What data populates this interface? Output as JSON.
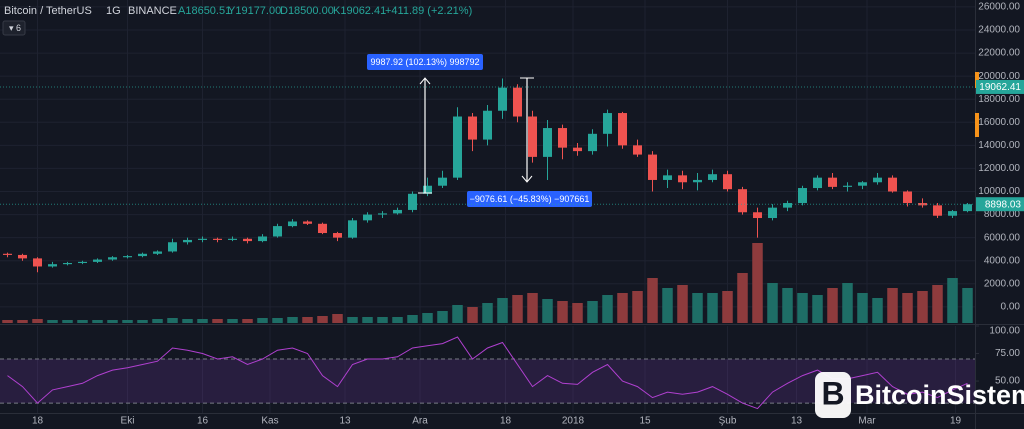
{
  "header": {
    "symbol": "Bitcoin / TetherUS",
    "interval": "1G",
    "exchange": "BINANCE",
    "ohlc": [
      "A18650.51",
      "Y19177.00",
      "D18500.00",
      "K19062.41"
    ],
    "change": "+411.89 (+2.21%)",
    "indicator_count": "6"
  },
  "annotations": [
    "9987.92 (102.13%) 998792",
    "−9076.61 (−45.83%) −907661"
  ],
  "watermark": "BitcoinSistemi",
  "chart_data": [
    {
      "type": "candlestick",
      "up_color": "#26a69a",
      "down_color": "#ef5350",
      "xlim": [
        -0.5,
        64.5
      ],
      "xticks": [
        {
          "value": 2,
          "label": "18"
        },
        {
          "value": 8,
          "label": "Eki"
        },
        {
          "value": 13,
          "label": "16"
        },
        {
          "value": 17.5,
          "label": "Kas"
        },
        {
          "value": 22.5,
          "label": "13"
        },
        {
          "value": 27.5,
          "label": "Ara"
        },
        {
          "value": 33.2,
          "label": "18"
        },
        {
          "value": 37.7,
          "label": "2018"
        },
        {
          "value": 42.5,
          "label": "15"
        },
        {
          "value": 48,
          "label": "Şub"
        },
        {
          "value": 52.6,
          "label": "13"
        },
        {
          "value": 57.3,
          "label": "Mar"
        },
        {
          "value": 63.2,
          "label": "19"
        }
      ],
      "ylim": [
        -1400,
        26600
      ],
      "yticks": [
        {
          "value": 0,
          "label": "0.00"
        },
        {
          "value": 2000,
          "label": "2000.00"
        },
        {
          "value": 4000,
          "label": "4000.00"
        },
        {
          "value": 6000,
          "label": "6000.00"
        },
        {
          "value": 8000,
          "label": "8000.00"
        },
        {
          "value": 10000,
          "label": "10000.00"
        },
        {
          "value": 12000,
          "label": "12000.00"
        },
        {
          "value": 14000,
          "label": "14000.00"
        },
        {
          "value": 16000,
          "label": "16000.00"
        },
        {
          "value": 18000,
          "label": "18000.00"
        },
        {
          "value": 20000,
          "label": "20000.00"
        },
        {
          "value": 22000,
          "label": "22000.00"
        },
        {
          "value": 24000,
          "label": "24000.00"
        },
        {
          "value": 26000,
          "label": "26000.00"
        }
      ],
      "grid": true,
      "price_lines": [
        {
          "value": 19062.41,
          "color": "#26a69a"
        },
        {
          "value": 8898.03,
          "color": "#26a69a"
        }
      ],
      "open": [
        4600,
        4500,
        4200,
        3500,
        3700,
        3800,
        3900,
        4100,
        4300,
        4400,
        4600,
        4800,
        5600,
        5800,
        5900,
        5800,
        5900,
        5700,
        6100,
        7000,
        7400,
        7200,
        6400,
        6000,
        7500,
        8000,
        8100,
        8400,
        9800,
        10500,
        11200,
        16500,
        14500,
        17000,
        19000,
        16500,
        13000,
        15500,
        13800,
        13500,
        15000,
        16800,
        14000,
        13200,
        11000,
        11400,
        10800,
        11000,
        11500,
        10200,
        8200,
        7700,
        8600,
        9000,
        10300,
        11200,
        10400,
        10500,
        10800,
        11200,
        10000,
        9000,
        8800,
        7900,
        8300
      ],
      "high": [
        4700,
        4600,
        4300,
        3900,
        3900,
        4000,
        4200,
        4400,
        4500,
        4700,
        4900,
        5900,
        6000,
        6100,
        6000,
        6100,
        6000,
        6300,
        7200,
        7600,
        7500,
        7300,
        6500,
        7700,
        8200,
        8300,
        8600,
        10000,
        11200,
        11800,
        17300,
        16800,
        17500,
        19800,
        19300,
        17000,
        16200,
        15800,
        14200,
        15400,
        17100,
        16900,
        14500,
        13500,
        11900,
        11800,
        11600,
        11900,
        11800,
        10400,
        8600,
        8900,
        9200,
        10500,
        11400,
        11600,
        10800,
        10900,
        11600,
        11400,
        10100,
        9400,
        9000,
        8400,
        9000
      ],
      "low": [
        4300,
        4000,
        3000,
        3400,
        3600,
        3700,
        3800,
        4000,
        4200,
        4300,
        4500,
        4700,
        5400,
        5600,
        5600,
        5700,
        5500,
        5600,
        6000,
        6900,
        7100,
        6300,
        5700,
        5900,
        7300,
        7700,
        8000,
        8200,
        9600,
        10300,
        11000,
        13500,
        14000,
        16300,
        16000,
        12500,
        11000,
        12800,
        13100,
        13200,
        13900,
        13700,
        13000,
        10000,
        10300,
        10200,
        10100,
        10800,
        10000,
        8000,
        6000,
        7500,
        8300,
        8800,
        10100,
        10200,
        10000,
        10200,
        10600,
        9900,
        8700,
        8600,
        7700,
        7700,
        8200
      ],
      "close": [
        4500,
        4200,
        3500,
        3700,
        3800,
        3900,
        4100,
        4300,
        4400,
        4600,
        4800,
        5600,
        5800,
        5900,
        5800,
        5900,
        5700,
        6100,
        7000,
        7400,
        7200,
        6400,
        6000,
        7500,
        8000,
        8100,
        8400,
        9800,
        10500,
        11200,
        16500,
        14500,
        17000,
        19000,
        16500,
        13000,
        15500,
        13800,
        13500,
        15000,
        16800,
        14000,
        13200,
        11000,
        11400,
        10800,
        11000,
        11500,
        10200,
        8200,
        7700,
        8600,
        9000,
        10300,
        11200,
        10400,
        10500,
        10800,
        11200,
        10000,
        9000,
        8800,
        7900,
        8300,
        8898.03
      ]
    },
    {
      "type": "bar",
      "up_color": "#1e6e66",
      "down_color": "#8e3b3d",
      "values": [
        3,
        3,
        4,
        3,
        3,
        3,
        3,
        3,
        3,
        3,
        4,
        5,
        4,
        4,
        4,
        4,
        4,
        5,
        5,
        6,
        6,
        7,
        9,
        6,
        6,
        6,
        6,
        8,
        10,
        12,
        18,
        16,
        20,
        25,
        28,
        30,
        24,
        22,
        20,
        22,
        28,
        30,
        32,
        45,
        35,
        38,
        30,
        30,
        32,
        50,
        80,
        40,
        35,
        30,
        28,
        35,
        40,
        30,
        25,
        35,
        30,
        32,
        38,
        45,
        35
      ]
    },
    {
      "type": "line",
      "color": "#b040d0",
      "band_color": "rgba(120,60,170,0.22)",
      "bands": [
        30,
        70
      ],
      "ylim": [
        21,
        100
      ],
      "yticks": [
        {
          "value": 100,
          "label": "100.00"
        },
        {
          "value": 75,
          "label": "75.00"
        },
        {
          "value": 50,
          "label": "50.00"
        }
      ],
      "values": [
        55,
        45,
        30,
        42,
        45,
        48,
        55,
        60,
        62,
        65,
        68,
        80,
        78,
        75,
        70,
        72,
        65,
        70,
        78,
        80,
        75,
        55,
        45,
        65,
        70,
        70,
        72,
        80,
        82,
        84,
        90,
        70,
        80,
        85,
        65,
        45,
        55,
        48,
        47,
        58,
        65,
        50,
        45,
        35,
        40,
        38,
        40,
        45,
        38,
        30,
        25,
        40,
        48,
        55,
        60,
        52,
        52,
        55,
        58,
        45,
        38,
        40,
        35,
        42,
        48
      ]
    }
  ]
}
